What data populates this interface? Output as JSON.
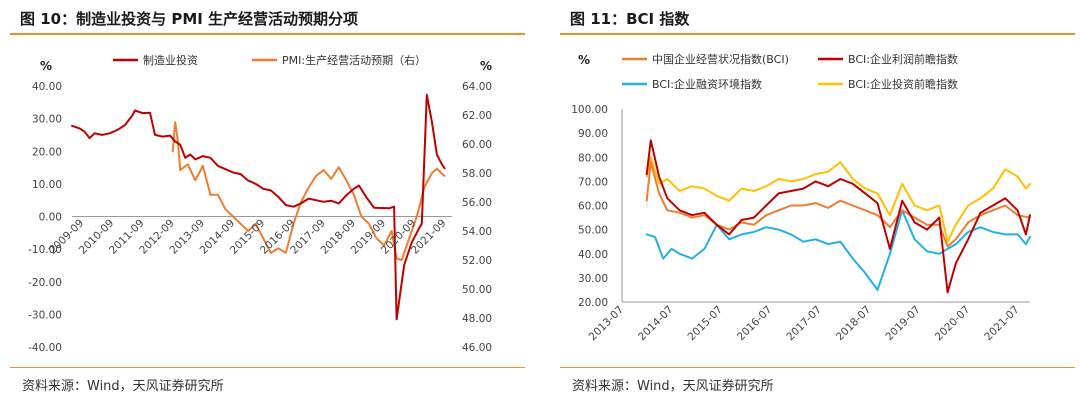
{
  "colors": {
    "accent": "#e8902a",
    "red": "#c00000",
    "orange": "#ed7d31",
    "blue": "#22b0e6",
    "yellow": "#ffc000"
  },
  "fig10": {
    "title": "图 10：制造业投资与 PMI 生产经营活动预期分项",
    "source": "资料来源：Wind，天风证券研究所",
    "chart_data": {
      "type": "line",
      "left_unit": "%",
      "right_unit": "%",
      "ylim_left": [
        -40,
        40
      ],
      "ylim_right": [
        46,
        64
      ],
      "left_ticks": [
        "40.00",
        "30.00",
        "20.00",
        "10.00",
        "0.00",
        "-10.00",
        "-20.00",
        "-30.00",
        "-40.00"
      ],
      "right_ticks": [
        "64.00",
        "62.00",
        "60.00",
        "58.00",
        "56.00",
        "54.00",
        "52.00",
        "50.00",
        "48.00",
        "46.00"
      ],
      "x_tick_labels": [
        "2009-09",
        "2010-09",
        "2011-09",
        "2012-09",
        "2013-09",
        "2014-09",
        "2015-09",
        "2016-09",
        "2017-09",
        "2018-09",
        "2019-09",
        "2020-09",
        "2021-09"
      ],
      "x_range": [
        "2009-05",
        "2021-12"
      ],
      "series": [
        {
          "name": "制造业投资",
          "axis": "left",
          "color": "#c00000",
          "points": [
            [
              "2009-05",
              27.8
            ],
            [
              "2009-08",
              27
            ],
            [
              "2009-10",
              26
            ],
            [
              "2009-12",
              24
            ],
            [
              "2010-02",
              25.5
            ],
            [
              "2010-05",
              25
            ],
            [
              "2010-08",
              25.5
            ],
            [
              "2010-11",
              26.5
            ],
            [
              "2011-02",
              28
            ],
            [
              "2011-05",
              31
            ],
            [
              "2011-06",
              32.5
            ],
            [
              "2011-09",
              31.7
            ],
            [
              "2011-12",
              31.8
            ],
            [
              "2012-02",
              25
            ],
            [
              "2012-05",
              24.5
            ],
            [
              "2012-08",
              24.8
            ],
            [
              "2012-10",
              23
            ],
            [
              "2012-12",
              22
            ],
            [
              "2013-02",
              18
            ],
            [
              "2013-04",
              19
            ],
            [
              "2013-06",
              17.5
            ],
            [
              "2013-09",
              18.5
            ],
            [
              "2013-12",
              18
            ],
            [
              "2014-03",
              15.5
            ],
            [
              "2014-06",
              14.5
            ],
            [
              "2014-09",
              13.5
            ],
            [
              "2014-12",
              13
            ],
            [
              "2015-03",
              11
            ],
            [
              "2015-06",
              10
            ],
            [
              "2015-09",
              8.5
            ],
            [
              "2015-12",
              8
            ],
            [
              "2016-03",
              6
            ],
            [
              "2016-06",
              3.5
            ],
            [
              "2016-09",
              3
            ],
            [
              "2016-12",
              4
            ],
            [
              "2017-03",
              5.5
            ],
            [
              "2017-06",
              5
            ],
            [
              "2017-09",
              4.5
            ],
            [
              "2017-12",
              4.8
            ],
            [
              "2018-03",
              4
            ],
            [
              "2018-06",
              6.5
            ],
            [
              "2018-09",
              8.5
            ],
            [
              "2018-11",
              9.5
            ],
            [
              "2019-02",
              5.9
            ],
            [
              "2019-05",
              2.7
            ],
            [
              "2019-08",
              2.6
            ],
            [
              "2019-11",
              2.5
            ],
            [
              "2020-01",
              3
            ],
            [
              "2020-02",
              -31.5
            ],
            [
              "2020-05",
              -14.8
            ],
            [
              "2020-08",
              -8
            ],
            [
              "2020-11",
              -3.5
            ],
            [
              "2020-12",
              -2.2
            ],
            [
              "2021-02",
              37.3
            ],
            [
              "2021-04",
              29
            ],
            [
              "2021-06",
              19
            ],
            [
              "2021-08",
              16
            ],
            [
              "2021-09",
              14.8
            ]
          ]
        },
        {
          "name": "PMI:生产经营活动预期（右）",
          "axis": "right",
          "color": "#ed7d31",
          "points": [
            [
              "2012-09",
              59.5
            ],
            [
              "2012-10",
              61.5
            ],
            [
              "2012-11",
              60.3
            ],
            [
              "2012-12",
              58.2
            ],
            [
              "2013-03",
              58.6
            ],
            [
              "2013-06",
              57.5
            ],
            [
              "2013-09",
              58.5
            ],
            [
              "2013-12",
              56.5
            ],
            [
              "2014-03",
              56.5
            ],
            [
              "2014-06",
              55.5
            ],
            [
              "2014-09",
              55
            ],
            [
              "2014-12",
              54.5
            ],
            [
              "2015-03",
              54
            ],
            [
              "2015-06",
              54.5
            ],
            [
              "2015-09",
              53.5
            ],
            [
              "2015-12",
              52.5
            ],
            [
              "2016-03",
              52.8
            ],
            [
              "2016-06",
              52.5
            ],
            [
              "2016-09",
              54.5
            ],
            [
              "2016-12",
              56
            ],
            [
              "2017-03",
              57
            ],
            [
              "2017-06",
              57.8
            ],
            [
              "2017-09",
              58.2
            ],
            [
              "2017-12",
              57.6
            ],
            [
              "2018-03",
              58.4
            ],
            [
              "2018-06",
              57.5
            ],
            [
              "2018-09",
              56.5
            ],
            [
              "2018-12",
              55
            ],
            [
              "2019-03",
              54.5
            ],
            [
              "2019-06",
              53.5
            ],
            [
              "2019-09",
              53
            ],
            [
              "2019-12",
              54
            ],
            [
              "2020-02",
              52.1
            ],
            [
              "2020-04",
              52
            ],
            [
              "2020-07",
              53.5
            ],
            [
              "2020-10",
              55
            ],
            [
              "2021-01",
              57
            ],
            [
              "2021-04",
              58
            ],
            [
              "2021-06",
              58.3
            ],
            [
              "2021-09",
              57.8
            ]
          ]
        }
      ]
    }
  },
  "fig11": {
    "title": "图 11：BCI 指数",
    "source": "资料来源：Wind，天风证券研究所",
    "chart_data": {
      "type": "line",
      "unit": "%",
      "ylim": [
        20,
        100
      ],
      "y_ticks": [
        "100.00",
        "90.00",
        "80.00",
        "70.00",
        "60.00",
        "50.00",
        "40.00",
        "30.00",
        "20.00"
      ],
      "x_tick_labels": [
        "2013-07",
        "2014-07",
        "2015-07",
        "2016-07",
        "2017-07",
        "2018-07",
        "2019-07",
        "2020-07",
        "2021-07"
      ],
      "x_range": [
        "2013-07",
        "2021-10"
      ],
      "series": [
        {
          "name": "中国企业经营状况指数(BCI)",
          "color": "#ed7d31",
          "points": [
            [
              "2014-01",
              62
            ],
            [
              "2014-02",
              78
            ],
            [
              "2014-04",
              65
            ],
            [
              "2014-06",
              58
            ],
            [
              "2014-09",
              57
            ],
            [
              "2014-12",
              55
            ],
            [
              "2015-03",
              56
            ],
            [
              "2015-06",
              52
            ],
            [
              "2015-09",
              50
            ],
            [
              "2015-12",
              53
            ],
            [
              "2016-03",
              52
            ],
            [
              "2016-06",
              56
            ],
            [
              "2016-09",
              58
            ],
            [
              "2016-12",
              60
            ],
            [
              "2017-03",
              60
            ],
            [
              "2017-06",
              61
            ],
            [
              "2017-09",
              59
            ],
            [
              "2017-12",
              62
            ],
            [
              "2018-03",
              60
            ],
            [
              "2018-06",
              58
            ],
            [
              "2018-09",
              56
            ],
            [
              "2018-12",
              51
            ],
            [
              "2019-03",
              58
            ],
            [
              "2019-06",
              55
            ],
            [
              "2019-09",
              52
            ],
            [
              "2019-12",
              52
            ],
            [
              "2020-02",
              43
            ],
            [
              "2020-04",
              46
            ],
            [
              "2020-07",
              53
            ],
            [
              "2020-10",
              56
            ],
            [
              "2021-01",
              58
            ],
            [
              "2021-04",
              60
            ],
            [
              "2021-07",
              56
            ],
            [
              "2021-10",
              55
            ]
          ]
        },
        {
          "name": "BCI:企业利润前瞻指数",
          "color": "#c00000",
          "points": [
            [
              "2014-01",
              73
            ],
            [
              "2014-02",
              87
            ],
            [
              "2014-04",
              72
            ],
            [
              "2014-06",
              63
            ],
            [
              "2014-09",
              58
            ],
            [
              "2014-12",
              56
            ],
            [
              "2015-03",
              57
            ],
            [
              "2015-06",
              52
            ],
            [
              "2015-09",
              48
            ],
            [
              "2015-12",
              54
            ],
            [
              "2016-03",
              55
            ],
            [
              "2016-06",
              60
            ],
            [
              "2016-09",
              65
            ],
            [
              "2016-12",
              66
            ],
            [
              "2017-03",
              67
            ],
            [
              "2017-06",
              70
            ],
            [
              "2017-09",
              68
            ],
            [
              "2017-12",
              71
            ],
            [
              "2018-03",
              69
            ],
            [
              "2018-06",
              65
            ],
            [
              "2018-09",
              61
            ],
            [
              "2018-12",
              42
            ],
            [
              "2019-03",
              62
            ],
            [
              "2019-06",
              53
            ],
            [
              "2019-09",
              50
            ],
            [
              "2019-12",
              55
            ],
            [
              "2020-02",
              24
            ],
            [
              "2020-04",
              36
            ],
            [
              "2020-07",
              46
            ],
            [
              "2020-10",
              57
            ],
            [
              "2021-01",
              60
            ],
            [
              "2021-04",
              63
            ],
            [
              "2021-07",
              58
            ],
            [
              "2021-09",
              48
            ],
            [
              "2021-10",
              56
            ]
          ]
        },
        {
          "name": "BCI:企业融资环境指数",
          "color": "#22b0e6",
          "points": [
            [
              "2014-01",
              48
            ],
            [
              "2014-03",
              47
            ],
            [
              "2014-05",
              38
            ],
            [
              "2014-07",
              42
            ],
            [
              "2014-09",
              40
            ],
            [
              "2014-12",
              38
            ],
            [
              "2015-03",
              42
            ],
            [
              "2015-06",
              52
            ],
            [
              "2015-09",
              46
            ],
            [
              "2015-12",
              48
            ],
            [
              "2016-03",
              49
            ],
            [
              "2016-06",
              51
            ],
            [
              "2016-09",
              50
            ],
            [
              "2016-12",
              48
            ],
            [
              "2017-03",
              45
            ],
            [
              "2017-06",
              46
            ],
            [
              "2017-09",
              44
            ],
            [
              "2017-12",
              45
            ],
            [
              "2018-03",
              38
            ],
            [
              "2018-06",
              32
            ],
            [
              "2018-09",
              25
            ],
            [
              "2018-12",
              40
            ],
            [
              "2019-03",
              58
            ],
            [
              "2019-06",
              46
            ],
            [
              "2019-09",
              41
            ],
            [
              "2019-12",
              40
            ],
            [
              "2020-02",
              42
            ],
            [
              "2020-04",
              44
            ],
            [
              "2020-07",
              49
            ],
            [
              "2020-10",
              51
            ],
            [
              "2021-01",
              49
            ],
            [
              "2021-04",
              48
            ],
            [
              "2021-07",
              48
            ],
            [
              "2021-09",
              44
            ],
            [
              "2021-10",
              47
            ]
          ]
        },
        {
          "name": "BCI:企业投资前瞻指数",
          "color": "#ffc000",
          "points": [
            [
              "2014-01",
              72
            ],
            [
              "2014-02",
              80
            ],
            [
              "2014-04",
              69
            ],
            [
              "2014-06",
              71
            ],
            [
              "2014-09",
              66
            ],
            [
              "2014-12",
              68
            ],
            [
              "2015-03",
              67
            ],
            [
              "2015-06",
              64
            ],
            [
              "2015-09",
              62
            ],
            [
              "2015-12",
              67
            ],
            [
              "2016-03",
              66
            ],
            [
              "2016-06",
              68
            ],
            [
              "2016-09",
              71
            ],
            [
              "2016-12",
              70
            ],
            [
              "2017-03",
              71
            ],
            [
              "2017-06",
              73
            ],
            [
              "2017-09",
              74
            ],
            [
              "2017-12",
              78
            ],
            [
              "2018-03",
              71
            ],
            [
              "2018-06",
              67
            ],
            [
              "2018-09",
              65
            ],
            [
              "2018-12",
              56
            ],
            [
              "2019-03",
              69
            ],
            [
              "2019-06",
              60
            ],
            [
              "2019-09",
              58
            ],
            [
              "2019-12",
              60
            ],
            [
              "2020-02",
              45
            ],
            [
              "2020-04",
              52
            ],
            [
              "2020-07",
              60
            ],
            [
              "2020-10",
              63
            ],
            [
              "2021-01",
              67
            ],
            [
              "2021-04",
              75
            ],
            [
              "2021-07",
              72
            ],
            [
              "2021-09",
              67
            ],
            [
              "2021-10",
              69
            ]
          ]
        }
      ]
    }
  }
}
